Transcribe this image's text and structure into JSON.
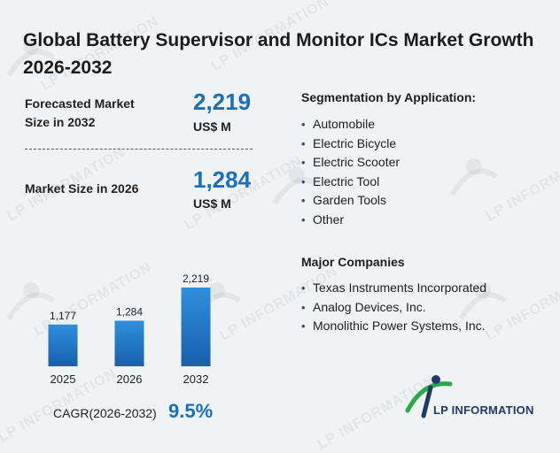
{
  "title": "Global Battery Supervisor and Monitor ICs Market Growth 2026-2032",
  "kpis": [
    {
      "label_line1": "Forecasted Market",
      "label_line2": "Size in 2032",
      "value": "2,219",
      "unit": "US$ M"
    },
    {
      "label_line1": "Market Size in 2026",
      "value": "1,284",
      "unit": "US$ M"
    }
  ],
  "segmentation": {
    "title": "Segmentation by Application:",
    "items": [
      "Automobile",
      "Electric Bicycle",
      "Electric Scooter",
      "Electric Tool",
      "Garden Tools",
      "Other"
    ]
  },
  "companies": {
    "title": "Major Companies",
    "items": [
      "Texas Instruments Incorporated",
      "Analog Devices, Inc.",
      "Monolithic Power Systems, Inc."
    ]
  },
  "cagr": {
    "label": "CAGR(2026-2032)",
    "value": "9.5%"
  },
  "logo": {
    "text": "LP INFORMATION"
  },
  "watermark": "LP INFORMATION",
  "colors": {
    "accent": "#1a6fb6",
    "bar_top": "#2f8fdc",
    "bar_bottom": "#1760ad",
    "background": "#f1f2f4"
  },
  "chart_data": {
    "type": "bar",
    "categories": [
      "2025",
      "2026",
      "2032"
    ],
    "values": [
      1177,
      1284,
      2219
    ],
    "data_labels": [
      "1,177",
      "1,284",
      "2,219"
    ],
    "ylim": [
      0,
      2219
    ]
  }
}
